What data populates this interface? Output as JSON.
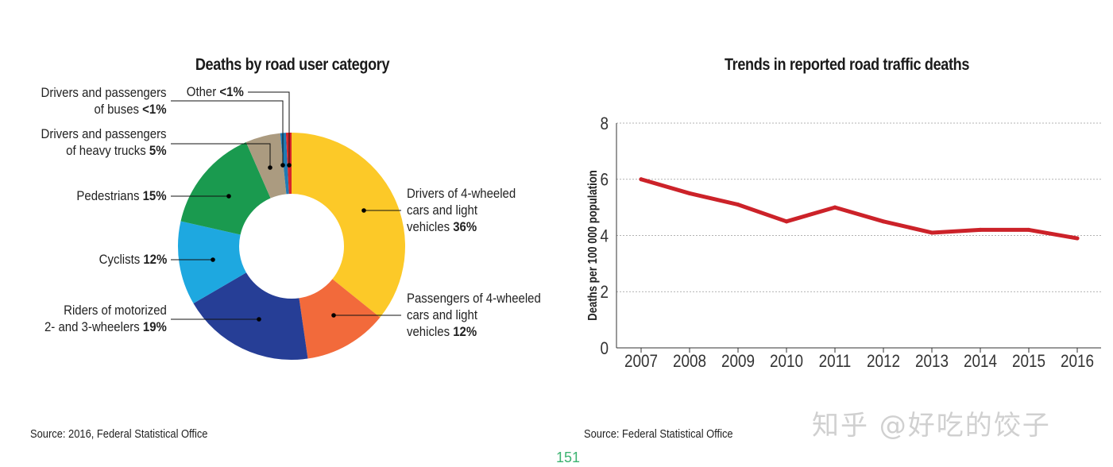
{
  "chart_data": [
    {
      "type": "pie",
      "donut": true,
      "title": "Deaths by road user category",
      "source": "Source: 2016, Federal Statistical Office",
      "slices": [
        {
          "id": "cars",
          "label_lines": [
            "Drivers of 4-wheeled",
            "cars and light",
            "vehicles "
          ],
          "value_text": "36%",
          "value": 36,
          "color": "#fcc928"
        },
        {
          "id": "passengers",
          "label_lines": [
            "Passengers of 4-wheeled",
            "cars and light",
            "vehicles "
          ],
          "value_text": "12%",
          "value": 12,
          "color": "#f26a3b"
        },
        {
          "id": "motorized",
          "label_lines": [
            "Riders of motorized",
            "2- and 3-wheelers "
          ],
          "value_text": "19%",
          "value": 19,
          "color": "#263e96"
        },
        {
          "id": "cyclists",
          "label_lines": [
            "Cyclists "
          ],
          "value_text": "12%",
          "value": 12,
          "color": "#1ea8e0"
        },
        {
          "id": "pedestrians",
          "label_lines": [
            "Pedestrians "
          ],
          "value_text": "15%",
          "value": 15,
          "color": "#1a9a4f"
        },
        {
          "id": "trucks",
          "label_lines": [
            "Drivers and passengers",
            "of heavy trucks "
          ],
          "value_text": "5%",
          "value": 5,
          "color": "#ab9b80"
        },
        {
          "id": "buses",
          "label_lines": [
            "Drivers and passengers",
            "of buses "
          ],
          "value_text": "<1%",
          "value": 0.8,
          "color": "#1f7ab5"
        },
        {
          "id": "other",
          "label_lines": [
            "Other "
          ],
          "value_text": "<1%",
          "value": 0.8,
          "color": "#d7262b"
        }
      ]
    },
    {
      "type": "line",
      "title": "Trends in reported road traffic deaths",
      "ylabel": "Deaths per 100 000 population",
      "xlabel": "",
      "source": "Source: Federal Statistical Office",
      "x": [
        "2007",
        "2008",
        "2009",
        "2010",
        "2011",
        "2012",
        "2013",
        "2014",
        "2015",
        "2016"
      ],
      "series": [
        {
          "values": [
            6.0,
            5.5,
            5.1,
            4.5,
            5.0,
            4.5,
            4.1,
            4.2,
            4.2,
            3.9
          ],
          "color": "#cc2229"
        }
      ],
      "ylim": [
        0,
        8
      ],
      "yticks": [
        "0",
        "2",
        "4",
        "6",
        "8"
      ],
      "grid": "horizontal dotted"
    }
  ],
  "page_number": "151",
  "watermark": "知乎 @好吃的饺子"
}
